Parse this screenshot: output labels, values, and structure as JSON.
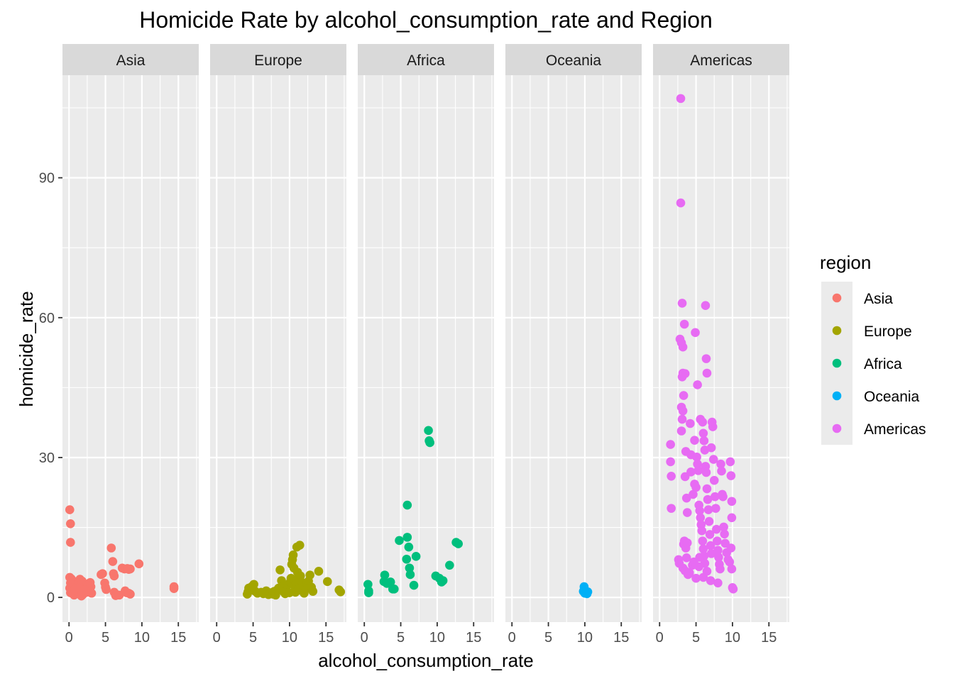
{
  "chart_data": {
    "type": "scatter",
    "title": "Homicide Rate by alcohol_consumption_rate and Region",
    "xlabel": "alcohol_consumption_rate",
    "ylabel": "homicide_rate",
    "xlim": [
      -0.9,
      17.8
    ],
    "ylim": [
      -5.3,
      112.0
    ],
    "x_ticks": [
      0,
      5,
      10,
      15
    ],
    "y_ticks": [
      0,
      30,
      60,
      90
    ],
    "grid": true,
    "facet_by": "region",
    "legend": {
      "title": "region",
      "placement": "right",
      "entries": [
        "Asia",
        "Europe",
        "Africa",
        "Oceania",
        "Americas"
      ]
    },
    "facets": [
      {
        "name": "Asia",
        "color": "#F8766D",
        "points": [
          [
            0.1,
            18.8
          ],
          [
            0.2,
            15.8
          ],
          [
            0.2,
            11.8
          ],
          [
            0.1,
            4.3
          ],
          [
            0.3,
            4.0
          ],
          [
            0.5,
            3.6
          ],
          [
            0.2,
            3.1
          ],
          [
            0.4,
            2.6
          ],
          [
            0.1,
            2.0
          ],
          [
            0.3,
            1.5
          ],
          [
            0.2,
            1.0
          ],
          [
            0.5,
            0.8
          ],
          [
            0.7,
            0.5
          ],
          [
            0.9,
            1.2
          ],
          [
            1.1,
            2.4
          ],
          [
            1.3,
            3.3
          ],
          [
            1.5,
            3.9
          ],
          [
            1.8,
            3.5
          ],
          [
            2.0,
            2.9
          ],
          [
            2.2,
            2.1
          ],
          [
            1.6,
            1.4
          ],
          [
            1.2,
            0.9
          ],
          [
            1.9,
            0.6
          ],
          [
            2.4,
            1.1
          ],
          [
            2.7,
            1.8
          ],
          [
            2.6,
            2.6
          ],
          [
            2.9,
            3.2
          ],
          [
            3.0,
            2.3
          ],
          [
            2.8,
            1.5
          ],
          [
            3.1,
            0.9
          ],
          [
            1.7,
            0.3
          ],
          [
            0.8,
            1.7
          ],
          [
            1.4,
            2.1
          ],
          [
            2.1,
            1.6
          ],
          [
            4.4,
            4.9
          ],
          [
            4.6,
            5.1
          ],
          [
            4.9,
            3.1
          ],
          [
            5.0,
            2.2
          ],
          [
            5.1,
            1.7
          ],
          [
            5.8,
            10.6
          ],
          [
            6.0,
            7.7
          ],
          [
            6.1,
            5.1
          ],
          [
            6.2,
            4.6
          ],
          [
            6.2,
            1.1
          ],
          [
            6.4,
            0.4
          ],
          [
            6.5,
            0.6
          ],
          [
            6.9,
            0.5
          ],
          [
            7.3,
            6.3
          ],
          [
            7.6,
            6.1
          ],
          [
            8.0,
            6.2
          ],
          [
            8.2,
            6.0
          ],
          [
            8.4,
            6.1
          ],
          [
            7.7,
            1.4
          ],
          [
            7.9,
            1.0
          ],
          [
            8.2,
            0.9
          ],
          [
            8.4,
            0.7
          ],
          [
            9.6,
            7.2
          ],
          [
            14.4,
            2.3
          ],
          [
            14.4,
            1.9
          ]
        ]
      },
      {
        "name": "Europe",
        "color": "#A3A500",
        "points": [
          [
            4.2,
            0.7
          ],
          [
            4.3,
            1.2
          ],
          [
            4.4,
            2.0
          ],
          [
            4.6,
            1.5
          ],
          [
            4.8,
            2.3
          ],
          [
            5.1,
            2.8
          ],
          [
            5.3,
            1.3
          ],
          [
            5.6,
            0.9
          ],
          [
            6.1,
            1.1
          ],
          [
            6.4,
            0.8
          ],
          [
            6.8,
            1.4
          ],
          [
            7.1,
            0.6
          ],
          [
            7.4,
            1.0
          ],
          [
            7.7,
            0.7
          ],
          [
            7.9,
            1.3
          ],
          [
            8.1,
            0.5
          ],
          [
            8.3,
            1.6
          ],
          [
            8.5,
            2.0
          ],
          [
            8.7,
            5.9
          ],
          [
            8.9,
            3.6
          ],
          [
            9.1,
            2.3
          ],
          [
            9.2,
            1.2
          ],
          [
            9.4,
            0.8
          ],
          [
            9.6,
            1.4
          ],
          [
            9.8,
            2.8
          ],
          [
            10.0,
            1.0
          ],
          [
            10.1,
            3.3
          ],
          [
            10.2,
            4.1
          ],
          [
            10.3,
            7.1
          ],
          [
            10.4,
            8.1
          ],
          [
            10.5,
            9.1
          ],
          [
            10.6,
            6.3
          ],
          [
            10.7,
            2.4
          ],
          [
            10.8,
            1.1
          ],
          [
            10.9,
            3.1
          ],
          [
            11.0,
            10.8
          ],
          [
            11.1,
            5.4
          ],
          [
            11.2,
            4.2
          ],
          [
            11.3,
            2.0
          ],
          [
            11.4,
            11.2
          ],
          [
            11.5,
            4.6
          ],
          [
            11.6,
            1.5
          ],
          [
            11.7,
            3.2
          ],
          [
            11.8,
            2.5
          ],
          [
            12.0,
            0.9
          ],
          [
            12.2,
            1.8
          ],
          [
            12.4,
            2.9
          ],
          [
            12.6,
            3.5
          ],
          [
            12.8,
            4.8
          ],
          [
            13.0,
            2.2
          ],
          [
            13.2,
            1.3
          ],
          [
            14.0,
            5.6
          ],
          [
            15.2,
            3.4
          ],
          [
            16.8,
            1.6
          ],
          [
            17.0,
            1.2
          ]
        ]
      },
      {
        "name": "Africa",
        "color": "#00BF7D",
        "points": [
          [
            0.5,
            2.8
          ],
          [
            0.6,
            1.4
          ],
          [
            0.6,
            1.0
          ],
          [
            2.7,
            3.4
          ],
          [
            2.8,
            4.8
          ],
          [
            3.1,
            3.0
          ],
          [
            3.6,
            3.3
          ],
          [
            3.9,
            1.8
          ],
          [
            4.1,
            1.8
          ],
          [
            4.8,
            12.2
          ],
          [
            5.8,
            8.2
          ],
          [
            5.9,
            12.9
          ],
          [
            5.9,
            19.8
          ],
          [
            6.1,
            10.8
          ],
          [
            6.2,
            6.3
          ],
          [
            6.3,
            4.9
          ],
          [
            6.8,
            2.6
          ],
          [
            7.1,
            8.8
          ],
          [
            8.8,
            35.8
          ],
          [
            8.9,
            33.6
          ],
          [
            9.0,
            33.2
          ],
          [
            9.8,
            4.6
          ],
          [
            10.3,
            4.1
          ],
          [
            10.6,
            3.3
          ],
          [
            10.8,
            3.6
          ],
          [
            11.7,
            6.9
          ],
          [
            12.6,
            11.8
          ],
          [
            12.9,
            11.5
          ]
        ]
      },
      {
        "name": "Oceania",
        "color": "#00B0F6",
        "points": [
          [
            9.9,
            2.3
          ],
          [
            9.8,
            1.3
          ],
          [
            10.0,
            0.9
          ],
          [
            10.3,
            0.8
          ],
          [
            10.4,
            1.2
          ]
        ]
      },
      {
        "name": "Americas",
        "color": "#E76BF3",
        "points": [
          [
            2.9,
            107.0
          ],
          [
            2.9,
            84.6
          ],
          [
            3.1,
            63.1
          ],
          [
            3.4,
            58.6
          ],
          [
            3.2,
            53.7
          ],
          [
            2.8,
            55.4
          ],
          [
            3.0,
            54.6
          ],
          [
            3.2,
            48.1
          ],
          [
            3.5,
            48.0
          ],
          [
            3.1,
            47.3
          ],
          [
            3.3,
            43.3
          ],
          [
            3.0,
            40.8
          ],
          [
            3.2,
            40.0
          ],
          [
            3.1,
            38.2
          ],
          [
            3.0,
            35.7
          ],
          [
            3.6,
            31.3
          ],
          [
            4.2,
            37.3
          ],
          [
            4.3,
            30.6
          ],
          [
            3.5,
            25.9
          ],
          [
            3.7,
            21.3
          ],
          [
            3.8,
            18.2
          ],
          [
            3.4,
            12.1
          ],
          [
            3.3,
            11.4
          ],
          [
            3.6,
            10.6
          ],
          [
            3.8,
            11.7
          ],
          [
            3.7,
            8.5
          ],
          [
            3.2,
            6.3
          ],
          [
            3.5,
            5.7
          ],
          [
            3.9,
            4.9
          ],
          [
            4.1,
            5.3
          ],
          [
            4.5,
            6.9
          ],
          [
            4.7,
            7.6
          ],
          [
            4.3,
            26.9
          ],
          [
            4.6,
            22.1
          ],
          [
            4.8,
            24.3
          ],
          [
            5.0,
            23.6
          ],
          [
            5.1,
            30.1
          ],
          [
            5.2,
            28.6
          ],
          [
            5.3,
            27.2
          ],
          [
            5.4,
            19.8
          ],
          [
            5.5,
            18.6
          ],
          [
            5.6,
            17.1
          ],
          [
            5.7,
            15.6
          ],
          [
            5.8,
            14.3
          ],
          [
            5.9,
            12.1
          ],
          [
            6.0,
            10.4
          ],
          [
            6.1,
            8.9
          ],
          [
            6.2,
            7.3
          ],
          [
            6.3,
            62.6
          ],
          [
            6.4,
            51.2
          ],
          [
            6.5,
            48.1
          ],
          [
            5.9,
            37.6
          ],
          [
            6.0,
            35.2
          ],
          [
            6.1,
            33.6
          ],
          [
            6.2,
            31.6
          ],
          [
            6.3,
            28.1
          ],
          [
            6.4,
            26.8
          ],
          [
            6.5,
            23.3
          ],
          [
            6.6,
            21.0
          ],
          [
            6.7,
            18.8
          ],
          [
            6.8,
            16.3
          ],
          [
            6.9,
            13.5
          ],
          [
            7.0,
            11.1
          ],
          [
            7.1,
            9.4
          ],
          [
            7.2,
            37.6
          ],
          [
            7.3,
            36.6
          ],
          [
            7.1,
            32.1
          ],
          [
            7.4,
            29.6
          ],
          [
            7.5,
            25.1
          ],
          [
            7.6,
            21.6
          ],
          [
            7.7,
            19.1
          ],
          [
            7.8,
            14.6
          ],
          [
            7.9,
            12.1
          ],
          [
            8.0,
            10.1
          ],
          [
            8.1,
            8.6
          ],
          [
            8.2,
            7.1
          ],
          [
            8.3,
            6.1
          ],
          [
            8.4,
            28.6
          ],
          [
            8.5,
            27.1
          ],
          [
            8.6,
            22.1
          ],
          [
            8.7,
            21.6
          ],
          [
            8.8,
            15.1
          ],
          [
            8.9,
            13.6
          ],
          [
            9.0,
            11.6
          ],
          [
            9.2,
            9.6
          ],
          [
            9.4,
            8.1
          ],
          [
            9.6,
            7.6
          ],
          [
            9.8,
            10.6
          ],
          [
            9.9,
            6.1
          ],
          [
            10.0,
            2.1
          ],
          [
            10.1,
            1.8
          ],
          [
            9.7,
            29.1
          ],
          [
            9.8,
            26.1
          ],
          [
            9.9,
            20.6
          ],
          [
            9.9,
            17.1
          ],
          [
            1.5,
            32.8
          ],
          [
            1.5,
            29.1
          ],
          [
            1.6,
            26.0
          ],
          [
            1.6,
            19.1
          ],
          [
            2.6,
            8.1
          ],
          [
            2.7,
            7.3
          ],
          [
            4.9,
            56.8
          ],
          [
            5.2,
            45.6
          ],
          [
            5.6,
            38.2
          ],
          [
            4.8,
            33.7
          ],
          [
            5.0,
            4.1
          ],
          [
            5.4,
            6.6
          ],
          [
            6.0,
            4.3
          ],
          [
            7.0,
            3.6
          ],
          [
            8.0,
            3.1
          ],
          [
            6.5,
            5.6
          ],
          [
            5.5,
            8.6
          ]
        ]
      }
    ]
  }
}
